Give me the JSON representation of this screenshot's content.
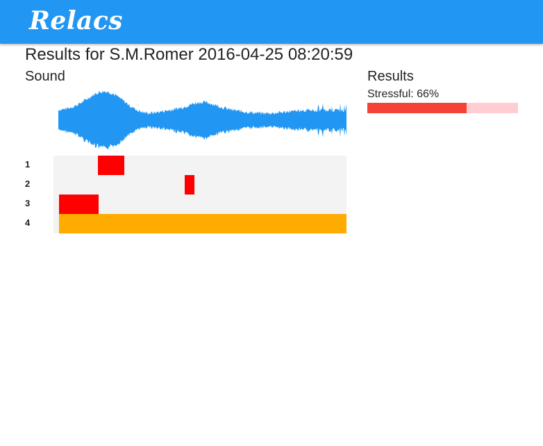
{
  "header": {
    "brand": "Relacs"
  },
  "page": {
    "title": "Results for S.M.Romer 2016-04-25 08:20:59"
  },
  "sound": {
    "title": "Sound",
    "waveform_color": "#2196f3"
  },
  "tracks": [
    {
      "label": "1",
      "segments": [
        {
          "start": 0.136,
          "end": 0.226,
          "color": "#ff0000"
        }
      ]
    },
    {
      "label": "2",
      "segments": [
        {
          "start": 0.438,
          "end": 0.471,
          "color": "#ff0000"
        }
      ]
    },
    {
      "label": "3",
      "segments": [
        {
          "start": 0.0,
          "end": 0.138,
          "color": "#ff0000"
        }
      ]
    },
    {
      "label": "4",
      "segments": [
        {
          "start": 0.0,
          "end": 1.0,
          "color": "#ffab00"
        }
      ]
    }
  ],
  "results": {
    "title": "Results",
    "stress_label": "Stressful: 66%",
    "stress_fraction": 0.66,
    "fill_color": "#f44336",
    "track_color": "#ffcdd2"
  }
}
